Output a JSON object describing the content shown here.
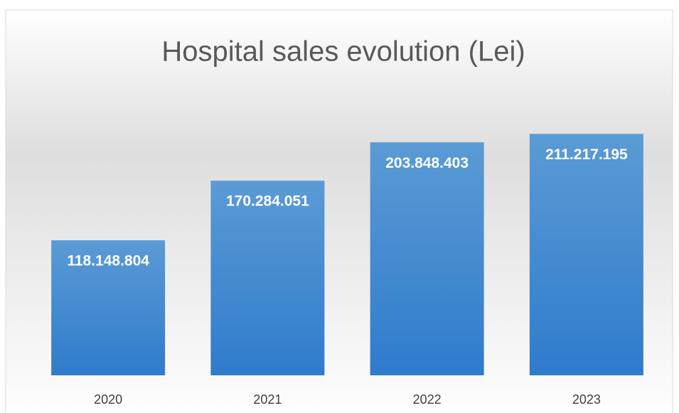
{
  "chart_data": {
    "type": "bar",
    "title": "Hospital sales evolution (Lei)",
    "categories": [
      "2020",
      "2021",
      "2022",
      "2023"
    ],
    "values": [
      118148804,
      170284051,
      203848403,
      211217195
    ],
    "value_labels": [
      "118.148.804",
      "170.284.051",
      "203.848.403",
      "211.217.195"
    ],
    "color": "#4a8fd6",
    "ylim": [
      0,
      250000000
    ]
  }
}
